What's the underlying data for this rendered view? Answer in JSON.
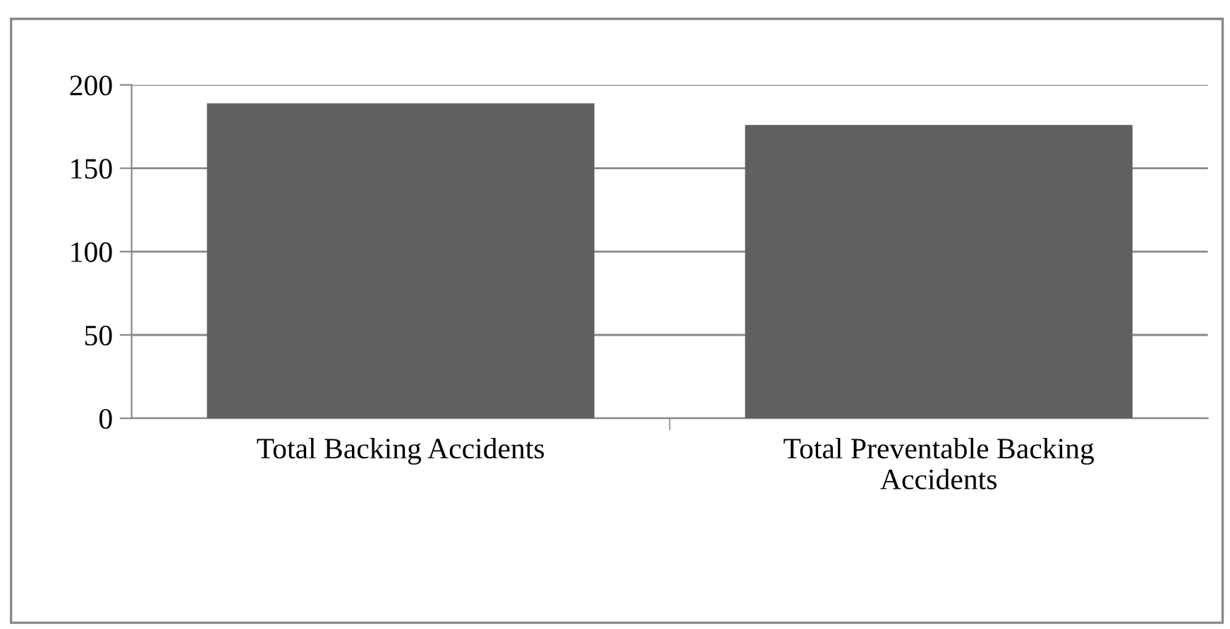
{
  "chart_data": {
    "type": "bar",
    "categories": [
      "Total Backing Accidents",
      "Total Preventable Backing\nAccidents"
    ],
    "values": [
      189,
      176
    ],
    "color": "#606060",
    "ylim": [
      0,
      200
    ],
    "yticks": [
      0,
      50,
      100,
      150,
      200
    ],
    "grid": "y"
  }
}
